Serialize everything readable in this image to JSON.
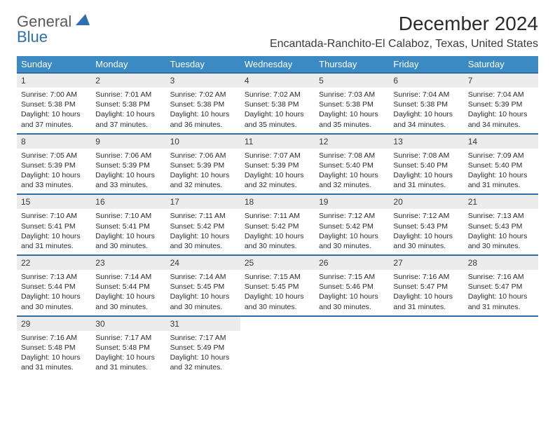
{
  "logo": {
    "line1": "General",
    "line2": "Blue",
    "icon_color": "#2f6fb0"
  },
  "title": "December 2024",
  "subtitle": "Encantada-Ranchito-El Calaboz, Texas, United States",
  "colors": {
    "header_bg": "#3b8ac4",
    "header_text": "#ffffff",
    "row_border": "#2f6fa3",
    "daynum_bg": "#ececec",
    "body_text": "#2b2b2b"
  },
  "day_headers": [
    "Sunday",
    "Monday",
    "Tuesday",
    "Wednesday",
    "Thursday",
    "Friday",
    "Saturday"
  ],
  "weeks": [
    [
      {
        "n": "1",
        "sr": "7:00 AM",
        "ss": "5:38 PM",
        "dl": "10 hours and 37 minutes."
      },
      {
        "n": "2",
        "sr": "7:01 AM",
        "ss": "5:38 PM",
        "dl": "10 hours and 37 minutes."
      },
      {
        "n": "3",
        "sr": "7:02 AM",
        "ss": "5:38 PM",
        "dl": "10 hours and 36 minutes."
      },
      {
        "n": "4",
        "sr": "7:02 AM",
        "ss": "5:38 PM",
        "dl": "10 hours and 35 minutes."
      },
      {
        "n": "5",
        "sr": "7:03 AM",
        "ss": "5:38 PM",
        "dl": "10 hours and 35 minutes."
      },
      {
        "n": "6",
        "sr": "7:04 AM",
        "ss": "5:38 PM",
        "dl": "10 hours and 34 minutes."
      },
      {
        "n": "7",
        "sr": "7:04 AM",
        "ss": "5:39 PM",
        "dl": "10 hours and 34 minutes."
      }
    ],
    [
      {
        "n": "8",
        "sr": "7:05 AM",
        "ss": "5:39 PM",
        "dl": "10 hours and 33 minutes."
      },
      {
        "n": "9",
        "sr": "7:06 AM",
        "ss": "5:39 PM",
        "dl": "10 hours and 33 minutes."
      },
      {
        "n": "10",
        "sr": "7:06 AM",
        "ss": "5:39 PM",
        "dl": "10 hours and 32 minutes."
      },
      {
        "n": "11",
        "sr": "7:07 AM",
        "ss": "5:39 PM",
        "dl": "10 hours and 32 minutes."
      },
      {
        "n": "12",
        "sr": "7:08 AM",
        "ss": "5:40 PM",
        "dl": "10 hours and 32 minutes."
      },
      {
        "n": "13",
        "sr": "7:08 AM",
        "ss": "5:40 PM",
        "dl": "10 hours and 31 minutes."
      },
      {
        "n": "14",
        "sr": "7:09 AM",
        "ss": "5:40 PM",
        "dl": "10 hours and 31 minutes."
      }
    ],
    [
      {
        "n": "15",
        "sr": "7:10 AM",
        "ss": "5:41 PM",
        "dl": "10 hours and 31 minutes."
      },
      {
        "n": "16",
        "sr": "7:10 AM",
        "ss": "5:41 PM",
        "dl": "10 hours and 30 minutes."
      },
      {
        "n": "17",
        "sr": "7:11 AM",
        "ss": "5:42 PM",
        "dl": "10 hours and 30 minutes."
      },
      {
        "n": "18",
        "sr": "7:11 AM",
        "ss": "5:42 PM",
        "dl": "10 hours and 30 minutes."
      },
      {
        "n": "19",
        "sr": "7:12 AM",
        "ss": "5:42 PM",
        "dl": "10 hours and 30 minutes."
      },
      {
        "n": "20",
        "sr": "7:12 AM",
        "ss": "5:43 PM",
        "dl": "10 hours and 30 minutes."
      },
      {
        "n": "21",
        "sr": "7:13 AM",
        "ss": "5:43 PM",
        "dl": "10 hours and 30 minutes."
      }
    ],
    [
      {
        "n": "22",
        "sr": "7:13 AM",
        "ss": "5:44 PM",
        "dl": "10 hours and 30 minutes."
      },
      {
        "n": "23",
        "sr": "7:14 AM",
        "ss": "5:44 PM",
        "dl": "10 hours and 30 minutes."
      },
      {
        "n": "24",
        "sr": "7:14 AM",
        "ss": "5:45 PM",
        "dl": "10 hours and 30 minutes."
      },
      {
        "n": "25",
        "sr": "7:15 AM",
        "ss": "5:45 PM",
        "dl": "10 hours and 30 minutes."
      },
      {
        "n": "26",
        "sr": "7:15 AM",
        "ss": "5:46 PM",
        "dl": "10 hours and 30 minutes."
      },
      {
        "n": "27",
        "sr": "7:16 AM",
        "ss": "5:47 PM",
        "dl": "10 hours and 31 minutes."
      },
      {
        "n": "28",
        "sr": "7:16 AM",
        "ss": "5:47 PM",
        "dl": "10 hours and 31 minutes."
      }
    ],
    [
      {
        "n": "29",
        "sr": "7:16 AM",
        "ss": "5:48 PM",
        "dl": "10 hours and 31 minutes."
      },
      {
        "n": "30",
        "sr": "7:17 AM",
        "ss": "5:48 PM",
        "dl": "10 hours and 31 minutes."
      },
      {
        "n": "31",
        "sr": "7:17 AM",
        "ss": "5:49 PM",
        "dl": "10 hours and 32 minutes."
      },
      null,
      null,
      null,
      null
    ]
  ],
  "labels": {
    "sunrise": "Sunrise:",
    "sunset": "Sunset:",
    "daylight": "Daylight:"
  }
}
